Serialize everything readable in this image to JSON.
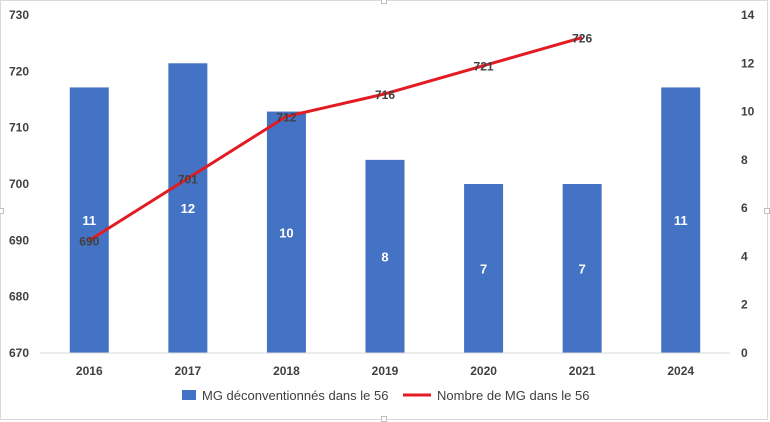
{
  "chart_data": {
    "type": "bar",
    "categories": [
      "2016",
      "2017",
      "2018",
      "2019",
      "2020",
      "2021",
      "2024"
    ],
    "series": [
      {
        "name": "MG déconventionnés dans le 56",
        "kind": "bar",
        "axis": "right",
        "color": "#4472C4",
        "values": [
          11,
          12,
          10,
          8,
          7,
          7,
          11
        ]
      },
      {
        "name": "Nombre de MG dans le 56",
        "kind": "line",
        "axis": "left",
        "color": "#E31B23",
        "values": [
          690,
          701,
          712,
          716,
          721,
          726,
          null
        ]
      }
    ],
    "y_left": {
      "min": 670,
      "max": 730,
      "ticks": [
        "670",
        "680",
        "690",
        "700",
        "710",
        "720",
        "730"
      ]
    },
    "y_right": {
      "min": 0,
      "max": 14,
      "ticks": [
        "0",
        "2",
        "4",
        "6",
        "8",
        "10",
        "12",
        "14"
      ]
    },
    "grid": false,
    "legend": "bottom"
  }
}
